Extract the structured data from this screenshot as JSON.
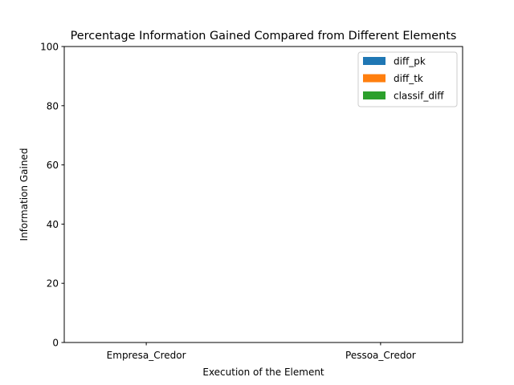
{
  "chart_data": {
    "type": "bar",
    "title": "Percentage Information Gained Compared from Different Elements",
    "xlabel": "Execution of the Element",
    "ylabel": "Information Gained",
    "categories": [
      "Empresa_Credor",
      "Pessoa_Credor"
    ],
    "ylim": [
      0,
      100
    ],
    "yticks": [
      0,
      20,
      40,
      60,
      80,
      100
    ],
    "grid": false,
    "legend_position": "top-right",
    "series": [
      {
        "name": "diff_pk",
        "color": "#1f77b4",
        "values": [
          0,
          0
        ]
      },
      {
        "name": "diff_tk",
        "color": "#ff7f0e",
        "values": [
          0,
          0
        ]
      },
      {
        "name": "classif_diff",
        "color": "#2ca02c",
        "values": [
          0,
          0
        ]
      }
    ]
  }
}
